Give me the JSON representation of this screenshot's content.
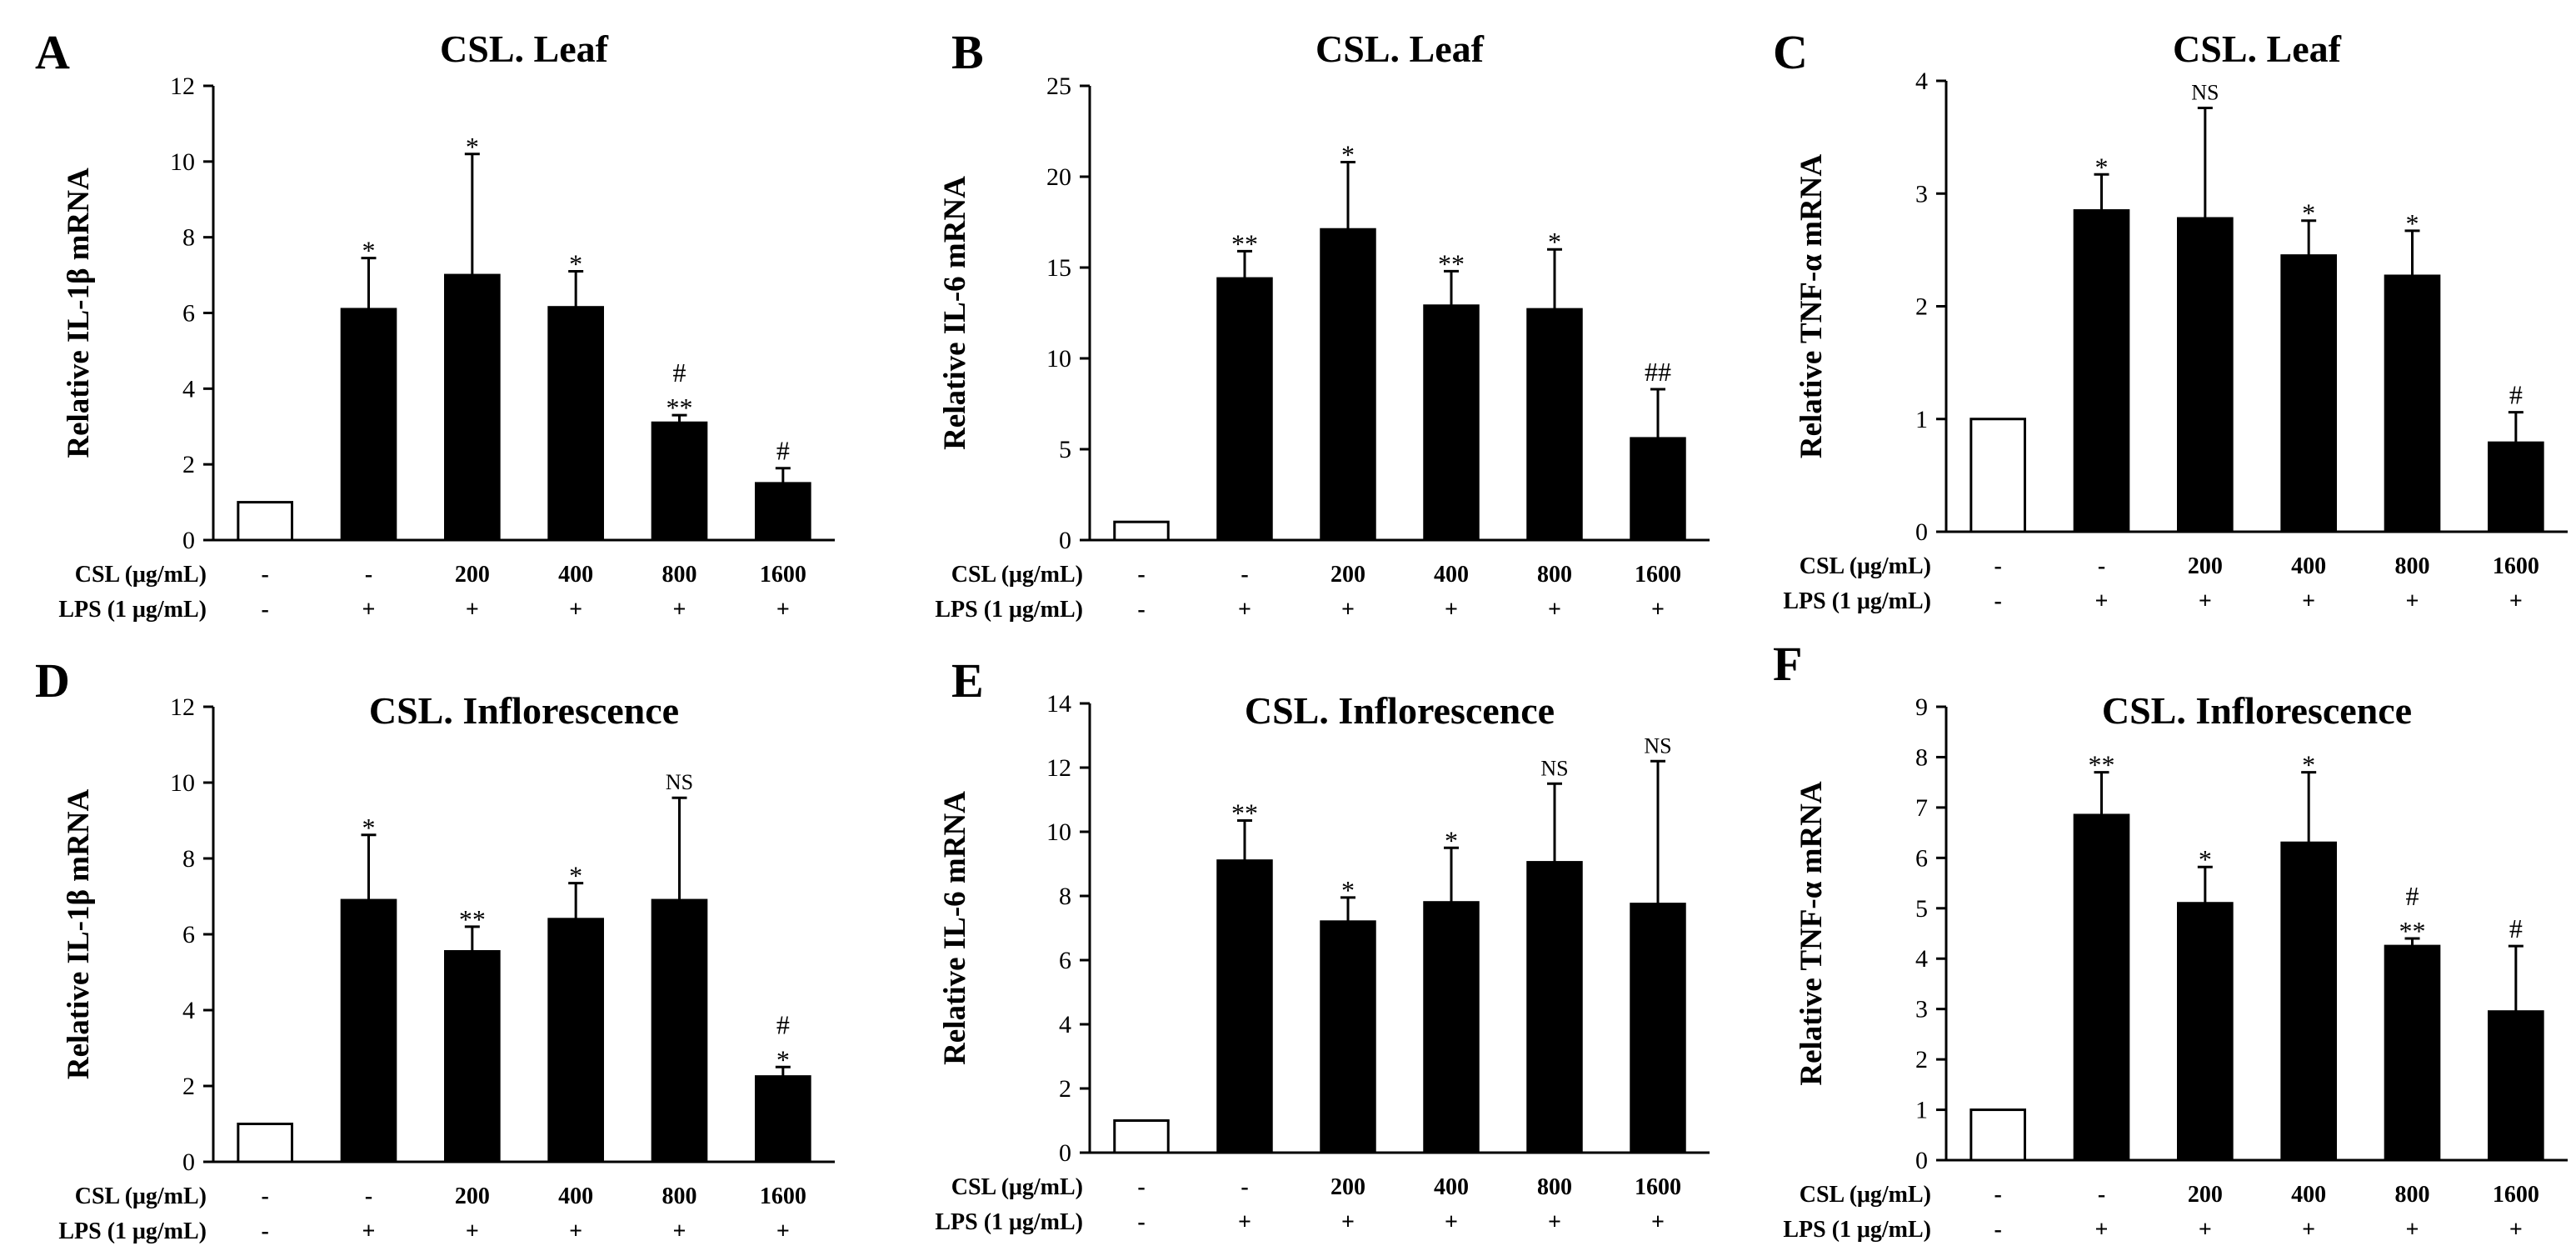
{
  "colors": {
    "control_bar": "#ffffff",
    "treated_bar": "#000000",
    "stroke": "#000000"
  },
  "chart_data": [
    {
      "type": "bar",
      "panel": "A",
      "title": "CSL. Leaf",
      "ylabel": "Relative IL-1β mRNA",
      "ylim": [
        0,
        12
      ],
      "yticks": [
        0,
        2,
        4,
        6,
        8,
        10,
        12
      ],
      "row_labels": [
        "CSL (μg/mL)",
        "LPS (1 μg/mL)"
      ],
      "csl": [
        "-",
        "-",
        "200",
        "400",
        "800",
        "1600"
      ],
      "lps": [
        "-",
        "+",
        "+",
        "+",
        "+",
        "+"
      ],
      "values": [
        1.0,
        6.1,
        7.0,
        6.15,
        3.1,
        1.5
      ],
      "errors": [
        0,
        1.35,
        3.2,
        0.95,
        0.2,
        0.4
      ],
      "annotations": [
        [],
        [
          "*"
        ],
        [
          "*"
        ],
        [
          "*"
        ],
        [
          "#",
          "**"
        ],
        [
          "#"
        ]
      ]
    },
    {
      "type": "bar",
      "panel": "B",
      "title": "CSL. Leaf",
      "ylabel": "Relative IL-6 mRNA",
      "ylim": [
        0,
        25
      ],
      "yticks": [
        0,
        5,
        10,
        15,
        20,
        25
      ],
      "row_labels": [
        "CSL (μg/mL)",
        "LPS (1 μg/mL)"
      ],
      "csl": [
        "-",
        "-",
        "200",
        "400",
        "800",
        "1600"
      ],
      "lps": [
        "-",
        "+",
        "+",
        "+",
        "+",
        "+"
      ],
      "values": [
        1.0,
        14.4,
        17.1,
        12.9,
        12.7,
        5.6
      ],
      "errors": [
        0,
        1.5,
        3.7,
        1.9,
        3.3,
        2.7
      ],
      "annotations": [
        [],
        [
          "**"
        ],
        [
          "*"
        ],
        [
          "**"
        ],
        [
          "*"
        ],
        [
          "##"
        ]
      ]
    },
    {
      "type": "bar",
      "panel": "C",
      "title": "CSL. Leaf",
      "ylabel": "Relative TNF-α mRNA",
      "ylim": [
        0,
        4
      ],
      "yticks": [
        0,
        1,
        2,
        3,
        4
      ],
      "row_labels": [
        "CSL (μg/mL)",
        "LPS (1 μg/mL)"
      ],
      "csl": [
        "-",
        "-",
        "200",
        "400",
        "800",
        "1600"
      ],
      "lps": [
        "-",
        "+",
        "+",
        "+",
        "+",
        "+"
      ],
      "values": [
        1.0,
        2.85,
        2.78,
        2.45,
        2.27,
        0.79
      ],
      "errors": [
        0,
        0.32,
        0.98,
        0.31,
        0.4,
        0.27
      ],
      "annotations": [
        [],
        [
          "*"
        ],
        [
          "NS"
        ],
        [
          "*"
        ],
        [
          "*"
        ],
        [
          "#"
        ]
      ]
    },
    {
      "type": "bar",
      "panel": "D",
      "title": "CSL. Inflorescence",
      "ylabel": "Relative IL-1β mRNA",
      "ylim": [
        0,
        12
      ],
      "yticks": [
        0,
        2,
        4,
        6,
        8,
        10,
        12
      ],
      "row_labels": [
        "CSL (μg/mL)",
        "LPS (1 μg/mL)"
      ],
      "csl": [
        "-",
        "-",
        "200",
        "400",
        "800",
        "1600"
      ],
      "lps": [
        "-",
        "+",
        "+",
        "+",
        "+",
        "+"
      ],
      "values": [
        1.0,
        6.9,
        5.55,
        6.4,
        6.9,
        2.25
      ],
      "errors": [
        0,
        1.72,
        0.65,
        0.95,
        2.7,
        0.25
      ],
      "annotations": [
        [],
        [
          "*"
        ],
        [
          "**"
        ],
        [
          "*"
        ],
        [
          "NS"
        ],
        [
          "#",
          "*"
        ]
      ]
    },
    {
      "type": "bar",
      "panel": "E",
      "title": "CSL. Inflorescence",
      "ylabel": "Relative IL-6 mRNA",
      "ylim": [
        0,
        14
      ],
      "yticks": [
        0,
        2,
        4,
        6,
        8,
        10,
        12,
        14
      ],
      "row_labels": [
        "CSL (μg/mL)",
        "LPS (1 μg/mL)"
      ],
      "csl": [
        "-",
        "-",
        "200",
        "400",
        "800",
        "1600"
      ],
      "lps": [
        "-",
        "+",
        "+",
        "+",
        "+",
        "+"
      ],
      "values": [
        1.0,
        9.1,
        7.2,
        7.8,
        9.05,
        7.75
      ],
      "errors": [
        0,
        1.25,
        0.75,
        1.7,
        2.45,
        4.45
      ],
      "annotations": [
        [],
        [
          "**"
        ],
        [
          "*"
        ],
        [
          "*"
        ],
        [
          "NS"
        ],
        [
          "NS"
        ]
      ]
    },
    {
      "type": "bar",
      "panel": "F",
      "title": "CSL. Inflorescence",
      "ylabel": "Relative TNF-α mRNA",
      "ylim": [
        0,
        9
      ],
      "yticks": [
        0,
        1,
        2,
        3,
        4,
        5,
        6,
        7,
        8,
        9
      ],
      "row_labels": [
        "CSL (μg/mL)",
        "LPS (1 μg/mL)"
      ],
      "csl": [
        "-",
        "-",
        "200",
        "400",
        "800",
        "1600"
      ],
      "lps": [
        "-",
        "+",
        "+",
        "+",
        "+",
        "+"
      ],
      "values": [
        1.0,
        6.85,
        5.1,
        6.3,
        4.25,
        2.95
      ],
      "errors": [
        0,
        0.85,
        0.72,
        1.4,
        0.15,
        1.3
      ],
      "annotations": [
        [],
        [
          "**"
        ],
        [
          "*"
        ],
        [
          "*"
        ],
        [
          "#",
          "**"
        ],
        [
          "#"
        ]
      ]
    }
  ]
}
